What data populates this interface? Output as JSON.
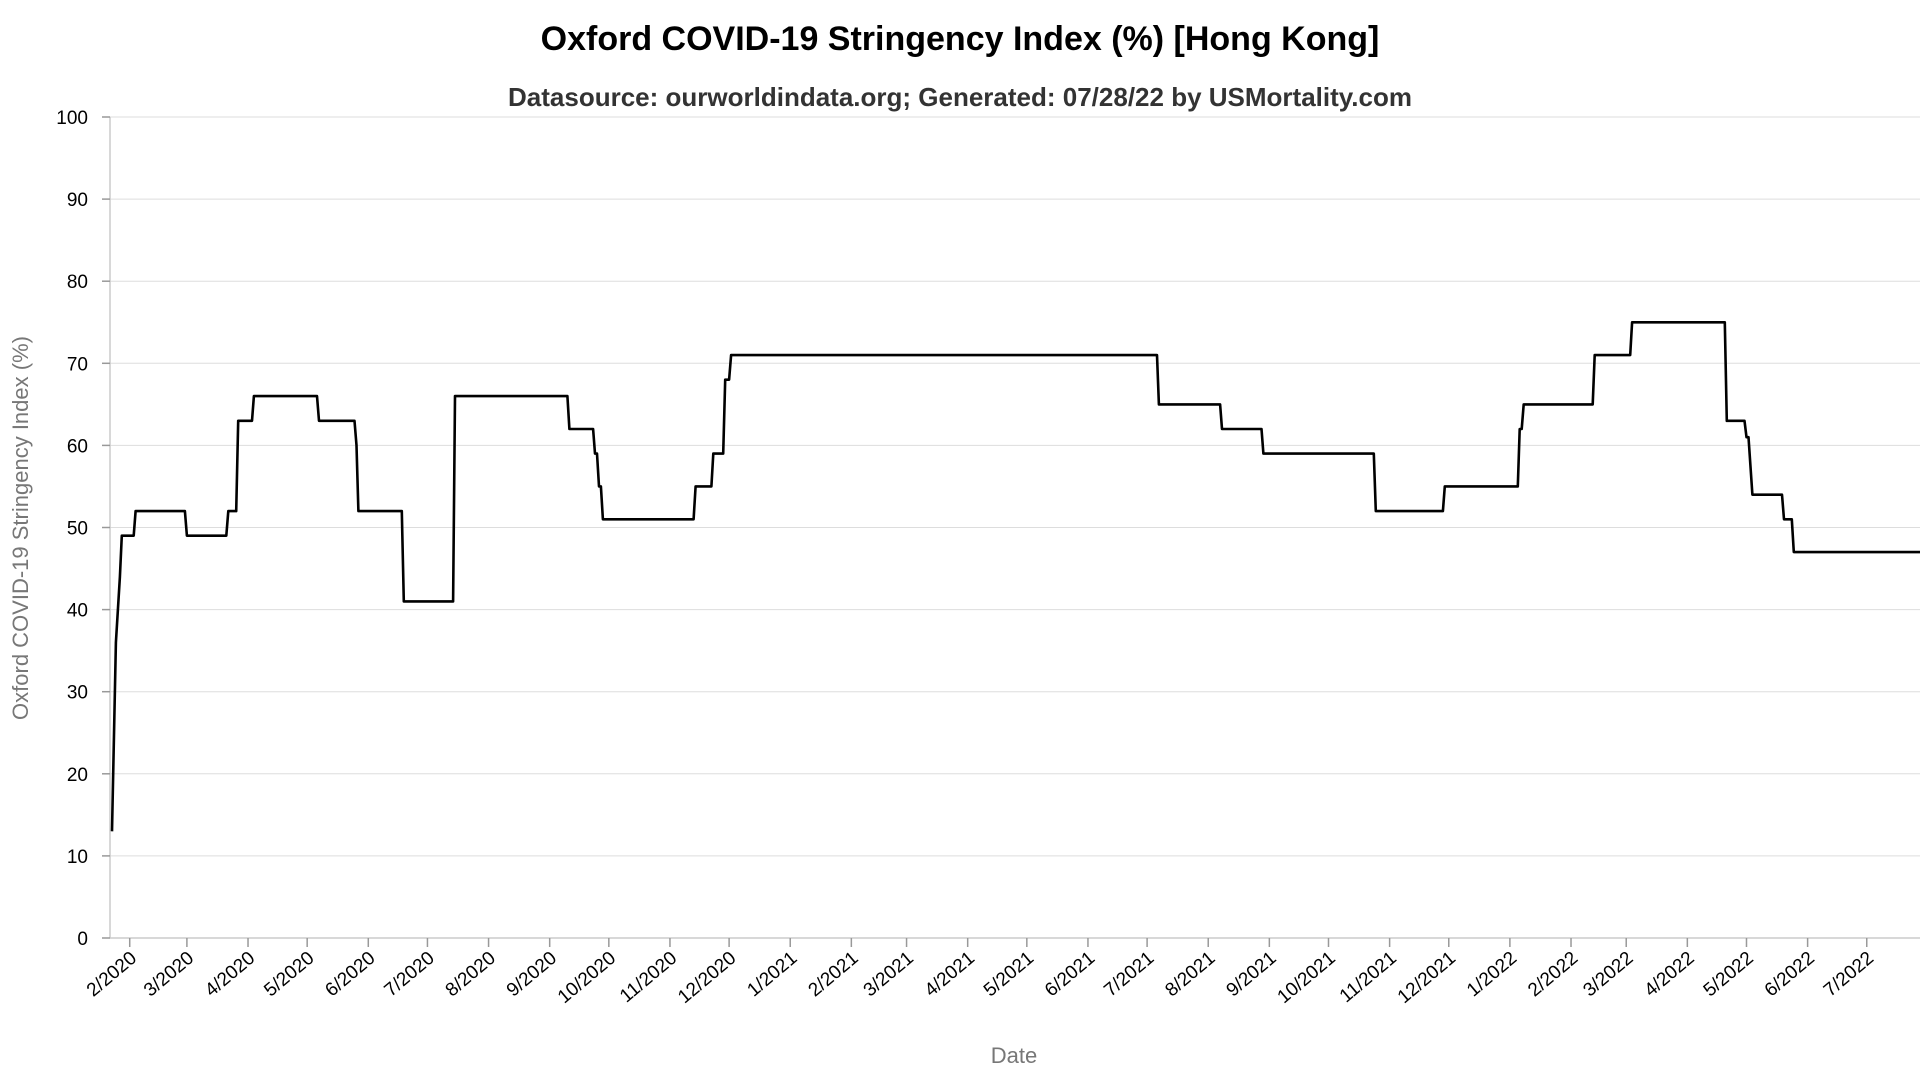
{
  "chart_data": {
    "type": "line",
    "title": "Oxford COVID-19 Stringency Index (%) [Hong Kong]",
    "subtitle": "Datasource: ourworldindata.org; Generated: 07/28/22 by USMortality.com",
    "xlabel": "Date",
    "ylabel": "Oxford COVID-19 Stringency Index (%)",
    "ylim": [
      0,
      100
    ],
    "yticks": [
      0,
      10,
      20,
      30,
      40,
      50,
      60,
      70,
      80,
      90,
      100
    ],
    "xlim": [
      "2020-01-22",
      "2022-07-28"
    ],
    "x_axis_type": "date",
    "grid": true,
    "legend": "none",
    "line_color": "#000000",
    "xticks": [
      {
        "date": "2020-02-01",
        "label": "2/2020"
      },
      {
        "date": "2020-03-01",
        "label": "3/2020"
      },
      {
        "date": "2020-04-01",
        "label": "4/2020"
      },
      {
        "date": "2020-05-01",
        "label": "5/2020"
      },
      {
        "date": "2020-06-01",
        "label": "6/2020"
      },
      {
        "date": "2020-07-01",
        "label": "7/2020"
      },
      {
        "date": "2020-08-01",
        "label": "8/2020"
      },
      {
        "date": "2020-09-01",
        "label": "9/2020"
      },
      {
        "date": "2020-10-01",
        "label": "10/2020"
      },
      {
        "date": "2020-11-01",
        "label": "11/2020"
      },
      {
        "date": "2020-12-01",
        "label": "12/2020"
      },
      {
        "date": "2021-01-01",
        "label": "1/2021"
      },
      {
        "date": "2021-02-01",
        "label": "2/2021"
      },
      {
        "date": "2021-03-01",
        "label": "3/2021"
      },
      {
        "date": "2021-04-01",
        "label": "4/2021"
      },
      {
        "date": "2021-05-01",
        "label": "5/2021"
      },
      {
        "date": "2021-06-01",
        "label": "6/2021"
      },
      {
        "date": "2021-07-01",
        "label": "7/2021"
      },
      {
        "date": "2021-08-01",
        "label": "8/2021"
      },
      {
        "date": "2021-09-01",
        "label": "9/2021"
      },
      {
        "date": "2021-10-01",
        "label": "10/2021"
      },
      {
        "date": "2021-11-01",
        "label": "11/2021"
      },
      {
        "date": "2021-12-01",
        "label": "12/2021"
      },
      {
        "date": "2022-01-01",
        "label": "1/2022"
      },
      {
        "date": "2022-02-01",
        "label": "2/2022"
      },
      {
        "date": "2022-03-01",
        "label": "3/2022"
      },
      {
        "date": "2022-04-01",
        "label": "4/2022"
      },
      {
        "date": "2022-05-01",
        "label": "5/2022"
      },
      {
        "date": "2022-06-01",
        "label": "6/2022"
      },
      {
        "date": "2022-07-01",
        "label": "7/2022"
      }
    ],
    "series": [
      {
        "points": [
          {
            "x": "2020-01-23",
            "y": 13
          },
          {
            "x": "2020-01-25",
            "y": 36
          },
          {
            "x": "2020-01-27",
            "y": 44
          },
          {
            "x": "2020-01-28",
            "y": 49
          },
          {
            "x": "2020-02-03",
            "y": 49
          },
          {
            "x": "2020-02-04",
            "y": 52
          },
          {
            "x": "2020-02-29",
            "y": 52
          },
          {
            "x": "2020-03-01",
            "y": 49
          },
          {
            "x": "2020-03-21",
            "y": 49
          },
          {
            "x": "2020-03-22",
            "y": 52
          },
          {
            "x": "2020-03-26",
            "y": 52
          },
          {
            "x": "2020-03-27",
            "y": 63
          },
          {
            "x": "2020-04-03",
            "y": 63
          },
          {
            "x": "2020-04-04",
            "y": 66
          },
          {
            "x": "2020-05-06",
            "y": 66
          },
          {
            "x": "2020-05-07",
            "y": 63
          },
          {
            "x": "2020-05-25",
            "y": 63
          },
          {
            "x": "2020-05-26",
            "y": 60
          },
          {
            "x": "2020-05-27",
            "y": 52
          },
          {
            "x": "2020-06-18",
            "y": 52
          },
          {
            "x": "2020-06-19",
            "y": 41
          },
          {
            "x": "2020-07-14",
            "y": 41
          },
          {
            "x": "2020-07-15",
            "y": 66
          },
          {
            "x": "2020-09-10",
            "y": 66
          },
          {
            "x": "2020-09-11",
            "y": 62
          },
          {
            "x": "2020-09-23",
            "y": 62
          },
          {
            "x": "2020-09-24",
            "y": 59
          },
          {
            "x": "2020-09-25",
            "y": 59
          },
          {
            "x": "2020-09-26",
            "y": 55
          },
          {
            "x": "2020-09-27",
            "y": 55
          },
          {
            "x": "2020-09-28",
            "y": 51
          },
          {
            "x": "2020-11-13",
            "y": 51
          },
          {
            "x": "2020-11-14",
            "y": 55
          },
          {
            "x": "2020-11-22",
            "y": 55
          },
          {
            "x": "2020-11-23",
            "y": 59
          },
          {
            "x": "2020-11-28",
            "y": 59
          },
          {
            "x": "2020-11-29",
            "y": 68
          },
          {
            "x": "2020-12-01",
            "y": 68
          },
          {
            "x": "2020-12-02",
            "y": 71
          },
          {
            "x": "2021-07-06",
            "y": 71
          },
          {
            "x": "2021-07-07",
            "y": 65
          },
          {
            "x": "2021-08-07",
            "y": 65
          },
          {
            "x": "2021-08-08",
            "y": 62
          },
          {
            "x": "2021-08-28",
            "y": 62
          },
          {
            "x": "2021-08-29",
            "y": 59
          },
          {
            "x": "2021-10-24",
            "y": 59
          },
          {
            "x": "2021-10-25",
            "y": 52
          },
          {
            "x": "2021-11-28",
            "y": 52
          },
          {
            "x": "2021-11-29",
            "y": 55
          },
          {
            "x": "2022-01-05",
            "y": 55
          },
          {
            "x": "2022-01-06",
            "y": 62
          },
          {
            "x": "2022-01-07",
            "y": 62
          },
          {
            "x": "2022-01-08",
            "y": 65
          },
          {
            "x": "2022-02-12",
            "y": 65
          },
          {
            "x": "2022-02-13",
            "y": 71
          },
          {
            "x": "2022-03-03",
            "y": 71
          },
          {
            "x": "2022-03-04",
            "y": 75
          },
          {
            "x": "2022-04-20",
            "y": 75
          },
          {
            "x": "2022-04-21",
            "y": 63
          },
          {
            "x": "2022-04-30",
            "y": 63
          },
          {
            "x": "2022-05-01",
            "y": 61
          },
          {
            "x": "2022-05-02",
            "y": 61
          },
          {
            "x": "2022-05-04",
            "y": 54
          },
          {
            "x": "2022-05-19",
            "y": 54
          },
          {
            "x": "2022-05-20",
            "y": 51
          },
          {
            "x": "2022-05-24",
            "y": 51
          },
          {
            "x": "2022-05-25",
            "y": 47
          },
          {
            "x": "2022-07-28",
            "y": 47
          }
        ]
      }
    ]
  }
}
